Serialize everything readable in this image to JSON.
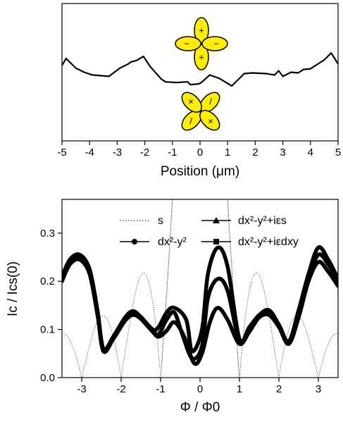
{
  "colors": {
    "axes": "#000000",
    "lobe_fill": "#ffee00",
    "lobe_stroke": "#000000"
  },
  "chart_data": [
    {
      "type": "line",
      "title": "",
      "xlabel": "Position (μm)",
      "ylabel": "",
      "xlim": [
        -5,
        5
      ],
      "ylim": [
        0,
        1
      ],
      "x_ticks": [
        -5,
        -4,
        -3,
        -2,
        -1,
        0,
        1,
        2,
        3,
        4,
        5
      ],
      "x_tick_labels": [
        "-5",
        "-4",
        "-3",
        "-2",
        "-1",
        "0",
        "1",
        "2",
        "3",
        "4",
        "5"
      ],
      "y_ticks_shown": false,
      "series": [
        {
          "x": [
            -5.0,
            -4.85,
            -4.5,
            -4.2,
            -3.9,
            -3.3,
            -2.9,
            -2.6,
            -2.5,
            -2.3,
            -2.05,
            -1.8,
            -1.4,
            -1.25,
            -0.85,
            -0.45,
            -0.35,
            -0.05,
            0.05,
            0.35,
            0.7,
            1.15,
            1.6,
            1.9,
            2.4,
            2.7,
            2.85,
            3.0,
            3.3,
            3.55,
            3.75,
            4.0,
            4.5,
            4.75,
            5.0
          ],
          "y": [
            0.55,
            0.6,
            0.53,
            0.5,
            0.48,
            0.47,
            0.53,
            0.56,
            0.575,
            0.585,
            0.615,
            0.54,
            0.45,
            0.43,
            0.425,
            0.43,
            0.41,
            0.415,
            0.425,
            0.48,
            0.455,
            0.4,
            0.49,
            0.495,
            0.49,
            0.48,
            0.51,
            0.47,
            0.5,
            0.495,
            0.52,
            0.525,
            0.59,
            0.64,
            0.56
          ]
        }
      ],
      "annotations": [
        {
          "description": "d-wave orbital diagram with lobes along x and y axes",
          "lobe_signs": [
            "+",
            "−",
            "−",
            "+"
          ]
        },
        {
          "description": "d-wave orbital diagram rotated 45 degrees",
          "lobe_signs": [
            "×",
            "/",
            "×",
            "/"
          ]
        }
      ]
    },
    {
      "type": "line",
      "title": "",
      "xlabel": "Φ / Φ0",
      "ylabel": "Ic / Ics(0)",
      "xlim": [
        -3.5,
        3.5
      ],
      "ylim": [
        0.0,
        0.37
      ],
      "x_ticks": [
        -3,
        -2,
        -1,
        0,
        1,
        2,
        3
      ],
      "x_tick_labels": [
        "-3",
        "-2",
        "-1",
        "0",
        "1",
        "2",
        "3"
      ],
      "y_ticks": [
        0.0,
        0.1,
        0.2,
        0.3
      ],
      "y_tick_labels": [
        "0.0",
        "0.1",
        "0.2",
        "0.3"
      ],
      "legend": {
        "placement": "top",
        "entries": [
          {
            "label": "s",
            "marker": "none",
            "style": "dotted"
          },
          {
            "label": "dx²-y²",
            "marker": "circle",
            "style": "solid"
          },
          {
            "label": "dx²-y²+iεs",
            "marker": "triangle",
            "style": "solid"
          },
          {
            "label": "dx²-y²+iεdxy",
            "marker": "square",
            "style": "solid"
          }
        ]
      },
      "series": [
        {
          "name": "s",
          "style": "dotted",
          "formula": "|sin(πΦ/Φ0) / (πΦ/Φ0)|",
          "note": "central lobe exceeds plot range"
        },
        {
          "name": "s",
          "style": "dotted-dense",
          "formula": "|sin(πΦ/Φ0) / (πΦ/Φ0)|",
          "x_range": [
            -1,
            1
          ]
        },
        {
          "name": "dx²-y²",
          "style": "thick",
          "x": [
            -3.5,
            -3.3,
            -3.05,
            -2.8,
            -2.6,
            -2.45,
            -2.2,
            -1.9,
            -1.7,
            -1.5,
            -1.2,
            -1.05,
            -0.85,
            -0.65,
            -0.4,
            -0.15,
            0.05,
            0.25,
            0.45,
            0.7,
            1.0,
            1.25,
            1.5,
            1.75,
            2.0,
            2.25,
            2.5,
            2.75,
            3.0,
            3.25,
            3.5
          ],
          "y": [
            0.2,
            0.235,
            0.245,
            0.215,
            0.13,
            0.055,
            0.08,
            0.118,
            0.13,
            0.122,
            0.095,
            0.085,
            0.097,
            0.115,
            0.085,
            0.03,
            0.05,
            0.115,
            0.145,
            0.12,
            0.07,
            0.095,
            0.125,
            0.13,
            0.105,
            0.07,
            0.125,
            0.2,
            0.24,
            0.22,
            0.19
          ]
        },
        {
          "name": "dx²-y²+iεs",
          "style": "thick",
          "x": [
            -3.5,
            -3.3,
            -3.05,
            -2.8,
            -2.6,
            -2.45,
            -2.2,
            -1.9,
            -1.7,
            -1.5,
            -1.2,
            -1.05,
            -0.85,
            -0.65,
            -0.45,
            -0.2,
            0.05,
            0.2,
            0.45,
            0.7,
            1.0,
            1.25,
            1.5,
            1.75,
            2.0,
            2.25,
            2.5,
            2.75,
            3.0,
            3.25,
            3.5
          ],
          "y": [
            0.205,
            0.24,
            0.25,
            0.22,
            0.135,
            0.055,
            0.082,
            0.12,
            0.133,
            0.124,
            0.097,
            0.09,
            0.12,
            0.135,
            0.09,
            0.04,
            0.065,
            0.165,
            0.205,
            0.18,
            0.075,
            0.1,
            0.128,
            0.135,
            0.108,
            0.072,
            0.13,
            0.205,
            0.255,
            0.235,
            0.2
          ]
        },
        {
          "name": "dx²-y²+iεdxy",
          "style": "thick",
          "x": [
            -3.5,
            -3.3,
            -3.05,
            -2.8,
            -2.6,
            -2.45,
            -2.2,
            -1.9,
            -1.7,
            -1.5,
            -1.2,
            -1.05,
            -0.85,
            -0.65,
            -0.35,
            -0.2,
            0.05,
            0.2,
            0.45,
            0.7,
            1.0,
            1.25,
            1.5,
            1.75,
            2.0,
            2.25,
            2.5,
            2.75,
            3.0,
            3.25,
            3.5
          ],
          "y": [
            0.21,
            0.245,
            0.255,
            0.225,
            0.14,
            0.06,
            0.085,
            0.125,
            0.138,
            0.126,
            0.1,
            0.105,
            0.135,
            0.145,
            0.12,
            0.055,
            0.1,
            0.215,
            0.27,
            0.23,
            0.08,
            0.105,
            0.13,
            0.14,
            0.11,
            0.075,
            0.14,
            0.215,
            0.27,
            0.245,
            0.205
          ]
        }
      ]
    }
  ]
}
